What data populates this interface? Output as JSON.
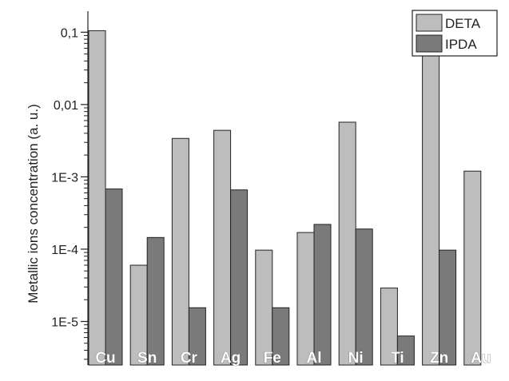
{
  "chart_data": {
    "type": "bar",
    "title": "",
    "xlabel": "",
    "ylabel": "Metallic ions concentration (a. u.)",
    "yscale": "log",
    "ylim": [
      2.5e-06,
      0.13
    ],
    "yticks": [
      {
        "value": 0.1,
        "label": "0,1"
      },
      {
        "value": 0.01,
        "label": "0,01"
      },
      {
        "value": 0.001,
        "label": "1E-3"
      },
      {
        "value": 0.0001,
        "label": "1E-4"
      },
      {
        "value": 1e-05,
        "label": "1E-5"
      }
    ],
    "grid": false,
    "legend_position": "top-right",
    "categories": [
      "Cu",
      "Sn",
      "Cr",
      "Ag",
      "Fe",
      "Al",
      "Ni",
      "Ti",
      "Zn",
      "Au"
    ],
    "series": [
      {
        "name": "DETA",
        "color": "#bdbdbd",
        "values": [
          0.105,
          6e-05,
          0.0034,
          0.0044,
          9.7e-05,
          0.00017,
          0.0057,
          2.9e-05,
          0.053,
          0.0012
        ]
      },
      {
        "name": "IPDA",
        "color": "#7a7a7a",
        "values": [
          0.00068,
          0.000145,
          1.55e-05,
          0.00066,
          1.55e-05,
          0.00022,
          0.00019,
          6.3e-06,
          9.7e-05,
          null
        ]
      }
    ]
  }
}
